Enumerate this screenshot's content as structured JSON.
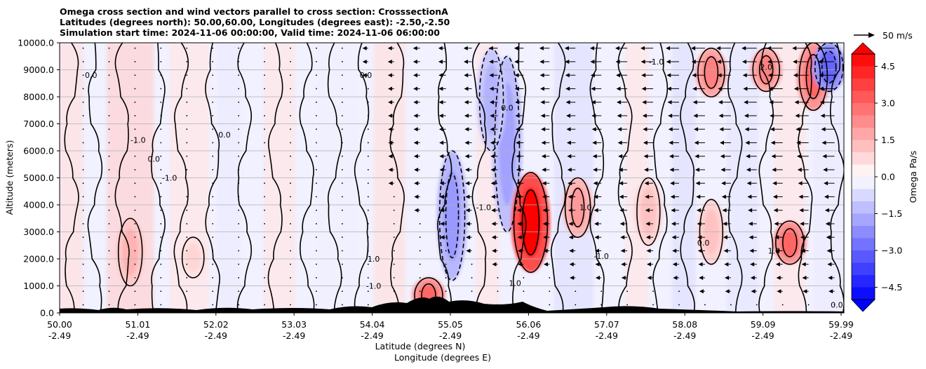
{
  "title_lines": [
    "Omega cross section and wind vectors parallel to cross section: CrosssectionA",
    "Latitudes (degrees north): 50.00,60.00, Longitudes (degrees east): -2.50,-2.50",
    "Simulation start time: 2024-11-06 00:00:00, Valid time: 2024-11-06 06:00:00"
  ],
  "quiver_key": "50 m/s",
  "chart_data": {
    "type": "heatmap",
    "subtype": "filled contour cross-section with wind vectors",
    "ylabel": "Altitude (meters)",
    "xlabel_lines": [
      "Latitude (degrees N)",
      "Longitude (degrees E)"
    ],
    "ylim": [
      0,
      10000
    ],
    "xlim": [
      50.0,
      59.99
    ],
    "yticks": [
      "0.0",
      "1000.0",
      "2000.0",
      "3000.0",
      "4000.0",
      "5000.0",
      "6000.0",
      "7000.0",
      "8000.0",
      "9000.0",
      "10000.0"
    ],
    "xticks": [
      {
        "lat": "50.00",
        "lon": "-2.49"
      },
      {
        "lat": "51.01",
        "lon": "-2.49"
      },
      {
        "lat": "52.02",
        "lon": "-2.49"
      },
      {
        "lat": "53.03",
        "lon": "-2.49"
      },
      {
        "lat": "54.04",
        "lon": "-2.49"
      },
      {
        "lat": "55.05",
        "lon": "-2.49"
      },
      {
        "lat": "56.06",
        "lon": "-2.49"
      },
      {
        "lat": "57.07",
        "lon": "-2.49"
      },
      {
        "lat": "58.08",
        "lon": "-2.49"
      },
      {
        "lat": "59.09",
        "lon": "-2.49"
      },
      {
        "lat": "59.99",
        "lon": "-2.49"
      }
    ],
    "grid": true,
    "colorbar": {
      "label": "Omega Pa/s",
      "range": [
        -5.0,
        5.0
      ],
      "levels_step": 0.5,
      "ticks": [
        "4.5",
        "3.0",
        "1.5",
        "0.0",
        "−1.5",
        "−3.0",
        "−4.5"
      ],
      "extend": "both",
      "colormap": "bwr",
      "colors": {
        "min": "#0000ff",
        "mid": "#ffffff",
        "max": "#ff0000"
      }
    },
    "contour_labels": [
      "0.0",
      "1.0",
      "-1.0",
      "2.0"
    ],
    "omega_features": [
      {
        "lat": 50.9,
        "z_from": 1000,
        "z_to": 3500,
        "omega": 1.5
      },
      {
        "lat": 51.7,
        "z_from": 1300,
        "z_to": 2800,
        "omega": 0.8
      },
      {
        "lat": 54.7,
        "z_from": 0,
        "z_to": 1300,
        "omega": 3.0
      },
      {
        "lat": 55.0,
        "z_from": 1200,
        "z_to": 6000,
        "omega": -2.0
      },
      {
        "lat": 55.7,
        "z_from": 3000,
        "z_to": 9500,
        "omega": -1.8
      },
      {
        "lat": 56.0,
        "z_from": 1500,
        "z_to": 5200,
        "omega": 5.0
      },
      {
        "lat": 56.6,
        "z_from": 2800,
        "z_to": 5000,
        "omega": 2.0
      },
      {
        "lat": 57.5,
        "z_from": 2500,
        "z_to": 5000,
        "omega": 1.2
      },
      {
        "lat": 58.3,
        "z_from": 1800,
        "z_to": 4200,
        "omega": 1.2
      },
      {
        "lat": 58.3,
        "z_from": 8000,
        "z_to": 9800,
        "omega": 2.5
      },
      {
        "lat": 59.0,
        "z_from": 8200,
        "z_to": 9800,
        "omega": 2.5
      },
      {
        "lat": 59.3,
        "z_from": 1800,
        "z_to": 3400,
        "omega": 3.0
      },
      {
        "lat": 59.6,
        "z_from": 7500,
        "z_to": 10000,
        "omega": 3.0
      },
      {
        "lat": 55.5,
        "z_from": 6000,
        "z_to": 9800,
        "omega": -1.5
      },
      {
        "lat": 59.8,
        "z_from": 8200,
        "z_to": 10000,
        "omega": -3.0
      }
    ],
    "wind_vectors": {
      "reference": "50 m/s",
      "direction": "toward decreasing latitude",
      "dominant_region": "upper levels, lat 56-60"
    }
  }
}
